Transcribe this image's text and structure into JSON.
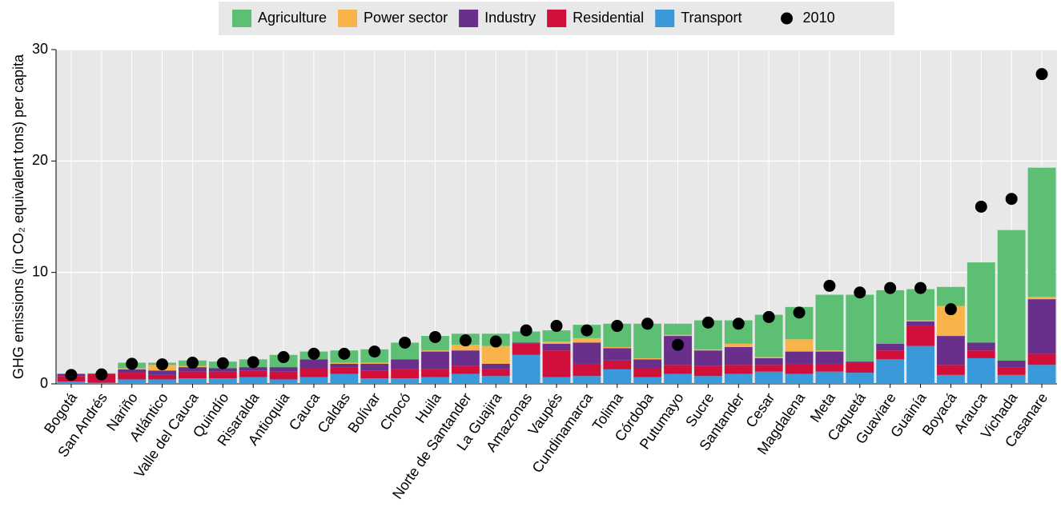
{
  "chart_data": {
    "type": "bar",
    "stacked": true,
    "y_label": "GHG emissions (in CO₂ equivalent tons) per capita",
    "categories": [
      "Bogotá",
      "San Andrés",
      "Nariño",
      "Atlántico",
      "Valle del Cauca",
      "Quindío",
      "Risaralda",
      "Antioquia",
      "Cauca",
      "Caldas",
      "Bolívar",
      "Chocó",
      "Huila",
      "Norte de Santander",
      "La Guajira",
      "Amazonas",
      "Vaupés",
      "Cundinamarca",
      "Tolima",
      "Córdoba",
      "Putumayo",
      "Sucre",
      "Santander",
      "Cesar",
      "Magdalena",
      "Meta",
      "Caquetá",
      "Guaviare",
      "Guainía",
      "Boyacá",
      "Arauca",
      "Vichada",
      "Casanare"
    ],
    "series": [
      {
        "name": "Transport",
        "color": "#3a9ad9",
        "values": [
          0.2,
          0.1,
          0.4,
          0.4,
          0.5,
          0.5,
          0.6,
          0.4,
          0.6,
          0.9,
          0.5,
          0.5,
          0.6,
          0.9,
          0.7,
          2.6,
          0.6,
          0.7,
          1.3,
          0.6,
          0.9,
          0.7,
          0.9,
          1.1,
          0.9,
          1.1,
          1.0,
          2.2,
          3.4,
          0.8,
          2.3,
          0.8,
          1.7
        ]
      },
      {
        "name": "Residential",
        "color": "#d0103a",
        "values": [
          0.5,
          0.8,
          0.6,
          0.4,
          0.6,
          0.6,
          0.6,
          0.7,
          0.8,
          0.6,
          0.7,
          0.8,
          0.7,
          0.7,
          0.6,
          1.0,
          2.4,
          1.1,
          0.8,
          0.8,
          0.8,
          0.9,
          0.8,
          0.6,
          0.9,
          0.7,
          0.9,
          0.8,
          1.8,
          0.9,
          0.7,
          0.7,
          1.0
        ]
      },
      {
        "name": "Industry",
        "color": "#6a2f8a",
        "values": [
          0.2,
          0,
          0.3,
          0.4,
          0.4,
          0.3,
          0.3,
          0.4,
          0.8,
          0.3,
          0.6,
          0.9,
          1.6,
          1.4,
          0.5,
          0.1,
          0.6,
          1.9,
          1.1,
          0.8,
          2.6,
          1.4,
          1.6,
          0.6,
          1.1,
          1.1,
          0.1,
          0.6,
          0.4,
          2.6,
          0.7,
          0.6,
          4.9
        ]
      },
      {
        "name": "Power sector",
        "color": "#f8b34a",
        "values": [
          0,
          0,
          0.1,
          0.5,
          0.1,
          0,
          0,
          0,
          0,
          0.1,
          0.1,
          0,
          0.1,
          0.5,
          1.6,
          0,
          0.2,
          0.4,
          0.1,
          0.1,
          0.1,
          0.1,
          0.3,
          0.1,
          1.1,
          0.1,
          0,
          0,
          0.1,
          2.7,
          0,
          0,
          0.2
        ]
      },
      {
        "name": "Agriculture",
        "color": "#5cbf73",
        "values": [
          0,
          0.05,
          0.5,
          0.2,
          0.5,
          0.6,
          0.7,
          1.1,
          0.7,
          1.1,
          1.2,
          1.5,
          1.3,
          1.0,
          1.1,
          1.0,
          1.0,
          1.2,
          2.1,
          3.1,
          1.0,
          2.6,
          2.1,
          3.8,
          2.9,
          5.0,
          6.0,
          4.8,
          2.8,
          1.7,
          7.2,
          11.7,
          11.6
        ]
      }
    ],
    "markers": {
      "name": "2010",
      "color": "#000000",
      "values": [
        0.8,
        0.85,
        1.8,
        1.75,
        1.9,
        1.85,
        1.95,
        2.4,
        2.7,
        2.7,
        2.9,
        3.7,
        4.2,
        3.9,
        3.8,
        4.8,
        5.2,
        4.8,
        5.2,
        5.4,
        3.5,
        5.5,
        5.4,
        6.0,
        6.4,
        8.8,
        8.2,
        8.6,
        8.6,
        6.7,
        15.9,
        16.6,
        27.8
      ]
    },
    "legend_order": [
      "Agriculture",
      "Power sector",
      "Industry",
      "Residential",
      "Transport",
      "2010"
    ],
    "ylim": [
      0,
      30
    ],
    "yticks": [
      0,
      10,
      20,
      30
    ],
    "grid": true
  }
}
